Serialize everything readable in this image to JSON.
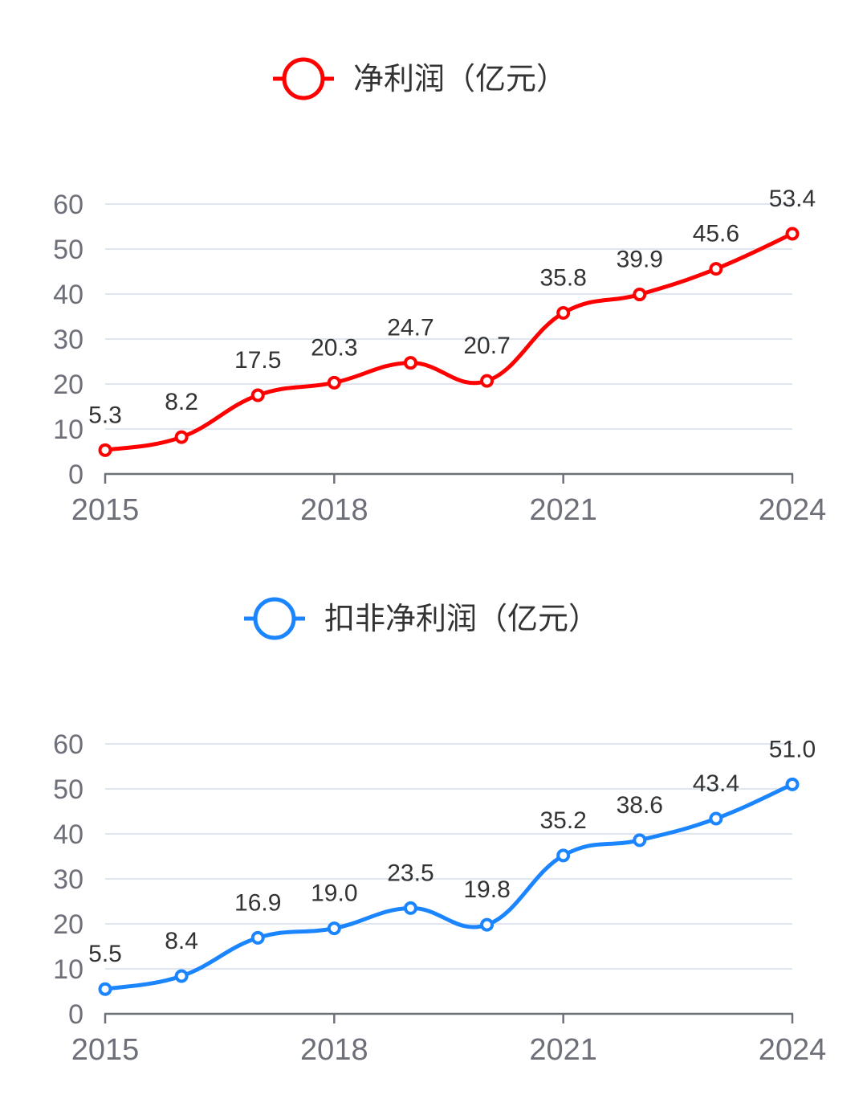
{
  "chart_data": [
    {
      "type": "line",
      "legend": "净利润（亿元）",
      "color": "#ff0000",
      "x": [
        "2015",
        "2016",
        "2017",
        "2018",
        "2019",
        "2020",
        "2021",
        "2022",
        "2023",
        "2024"
      ],
      "values": [
        5.3,
        8.2,
        17.5,
        20.3,
        24.7,
        20.7,
        35.8,
        39.9,
        45.6,
        53.4
      ],
      "value_labels": [
        "5.3",
        "8.2",
        "17.5",
        "20.3",
        "24.7",
        "20.7",
        "35.8",
        "39.9",
        "45.6",
        "53.4"
      ],
      "x_tick_labels": [
        "2015",
        "2018",
        "2021",
        "2024"
      ],
      "y_tick_labels": [
        "0",
        "10",
        "20",
        "30",
        "40",
        "50",
        "60"
      ],
      "ylim": [
        0,
        60
      ],
      "smooth": true
    },
    {
      "type": "line",
      "legend": "扣非净利润（亿元）",
      "color": "#1a85ff",
      "x": [
        "2015",
        "2016",
        "2017",
        "2018",
        "2019",
        "2020",
        "2021",
        "2022",
        "2023",
        "2024"
      ],
      "values": [
        5.5,
        8.4,
        16.9,
        19.0,
        23.5,
        19.8,
        35.2,
        38.6,
        43.4,
        51.0
      ],
      "value_labels": [
        "5.5",
        "8.4",
        "16.9",
        "19.0",
        "23.5",
        "19.8",
        "35.2",
        "38.6",
        "43.4",
        "51.0"
      ],
      "x_tick_labels": [
        "2015",
        "2018",
        "2021",
        "2024"
      ],
      "y_tick_labels": [
        "0",
        "10",
        "20",
        "30",
        "40",
        "50",
        "60"
      ],
      "ylim": [
        0,
        60
      ],
      "smooth": true
    }
  ]
}
